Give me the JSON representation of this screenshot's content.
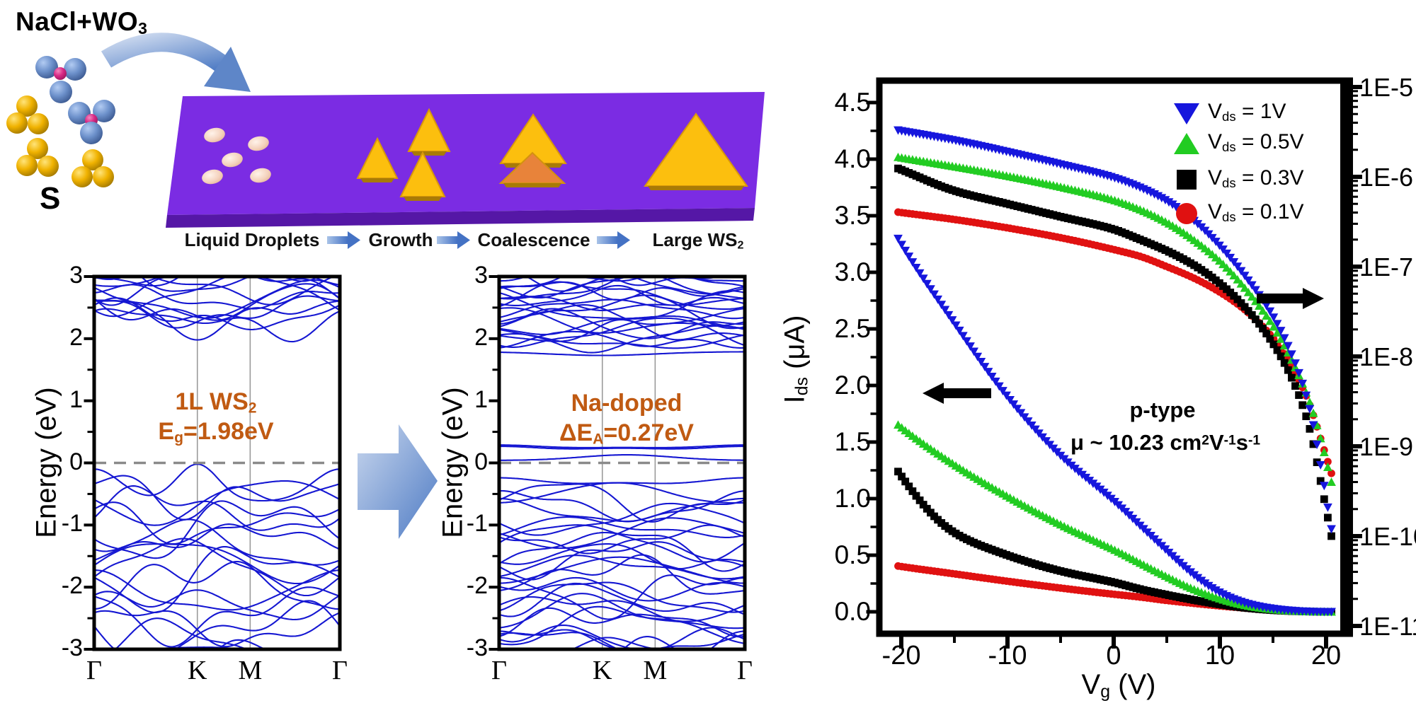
{
  "colors": {
    "series_blue": "#1616dd",
    "series_green": "#22cc22",
    "series_black": "#000000",
    "series_red": "#e01111",
    "band_line": "#1517d2",
    "fermi_dash": "#8a8a8a",
    "kpoint_grid": "#9a9a9a",
    "annotation_orange": "#c05a12",
    "precursor_blue": "#3b66ae",
    "sulfur_yellow": "#e9a603",
    "substrate_purple": "#7b2ce3",
    "substrate_front": "#5517a6",
    "triangle_yellow": "#fcbf0e",
    "triangle_edge": "#a87a06",
    "triangle_orange": "#e8833a",
    "droplet": "#f3cdb9",
    "arrow_light": "#c9d7ee",
    "arrow_dark": "#4e7bc4"
  },
  "schematic": {
    "precursor_label": {
      "pre": "NaCl+WO",
      "sub": "3"
    },
    "sulfur_label": "S",
    "stage1": "Liquid Droplets",
    "stage2": "Growth",
    "stage3": "Coalescence",
    "stage4": {
      "pre": "Large WS",
      "sub": "2"
    }
  },
  "chart_data": [
    {
      "id": "band_structure_pristine",
      "type": "line",
      "title_line1": {
        "pre": "1L WS",
        "sub": "2"
      },
      "title_line2": {
        "pre": "E",
        "sub": "g",
        "post": "=1.98eV"
      },
      "ylabel": "Energy (eV)",
      "ylim": [
        -3,
        3
      ],
      "yticks": [
        3,
        2,
        1,
        0,
        -1,
        -2,
        -3
      ],
      "xticklabels": [
        "Γ",
        "K",
        "M",
        "Γ"
      ],
      "kpoint_fractions": [
        0,
        0.42,
        0.635,
        1
      ],
      "fermi_level_eV": 0,
      "band_gap_eV": 1.98,
      "valence": {
        "n": 20,
        "top": -0.45,
        "bottom": -3.35,
        "amp": 0.42
      },
      "conduction": {
        "n": 13,
        "top": 3.2,
        "bottom": 2.32,
        "amp": 0.3
      },
      "special_bands": [
        {
          "base": 2.62,
          "bumps": [
            [
              0.42,
              0.16,
              -0.64
            ],
            [
              0.8,
              0.12,
              -0.22
            ]
          ]
        },
        {
          "base": -0.62,
          "bumps": [
            [
              0.42,
              0.12,
              0.6
            ],
            [
              0,
              0.15,
              0.52
            ],
            [
              1,
              0.15,
              0.52
            ]
          ]
        }
      ],
      "seed": 7
    },
    {
      "id": "band_structure_na_doped",
      "type": "line",
      "title_line1": {
        "pre": "Na-doped",
        "sub": ""
      },
      "title_line2": {
        "pre": "ΔE",
        "sub": "A",
        "post": "=0.27eV"
      },
      "ylabel": "Energy (eV)",
      "ylim": [
        -3,
        3
      ],
      "yticks": [
        3,
        2,
        1,
        0,
        -1,
        -2,
        -3
      ],
      "xticklabels": [
        "Γ",
        "K",
        "M",
        "Γ"
      ],
      "kpoint_fractions": [
        0,
        0.42,
        0.635,
        1
      ],
      "fermi_level_eV": 0,
      "acceptor_level_eV": 0.27,
      "valence": {
        "n": 30,
        "top": -0.5,
        "bottom": -3.35,
        "amp": 0.28
      },
      "conduction": {
        "n": 24,
        "top": 3.2,
        "bottom": 1.9,
        "amp": 0.22
      },
      "special_bands": [
        {
          "base": 0.24,
          "cos": [
            0.015,
            0.012
          ]
        },
        {
          "base": 0.26,
          "cos": [
            0.02,
            0.008
          ]
        },
        {
          "base": 0.04,
          "bumps": [
            [
              0.52,
              0.26,
              0.09
            ]
          ]
        },
        {
          "base": 1.79,
          "bumps": [
            [
              0.42,
              0.3,
              -0.06
            ]
          ]
        },
        {
          "base": -0.3,
          "cos": [
            0.04,
            0.02
          ]
        }
      ],
      "seed": 13
    },
    {
      "id": "transfer_curves",
      "type": "scatter",
      "xlabel": {
        "pre": "V",
        "sub": "g",
        "post": " (V)"
      },
      "ylabel": {
        "pre": "I",
        "sub": "ds",
        "post": " (μA)"
      },
      "xlim": [
        -22.07,
        21.93
      ],
      "xticks": [
        -20,
        -10,
        0,
        10,
        20
      ],
      "x_minor_step": 5,
      "ylim_left": [
        -0.19,
        4.69
      ],
      "yticks_left": [
        "4.5",
        "4.0",
        "3.5",
        "3.0",
        "2.5",
        "2.0",
        "1.5",
        "1.0",
        "0.5",
        "0.0"
      ],
      "yticks_right": [
        "1E-5",
        "1E-6",
        "1E-7",
        "1E-8",
        "1E-9",
        "1E-10",
        "1E-11"
      ],
      "right_axis_decades": [
        -5,
        -11
      ],
      "vg": [
        -20,
        -15,
        -10,
        -5,
        0,
        2.5,
        5,
        7.5,
        10,
        12.5,
        15,
        17,
        18.5,
        19.5,
        20.5
      ],
      "series": [
        {
          "name": "Vds=1V",
          "marker": "triangle-down",
          "color_key": "series_blue",
          "label": {
            "pre": "V",
            "sub": "ds",
            "post": " = 1V"
          },
          "ids_uA": [
            3.25,
            2.55,
            1.9,
            1.38,
            0.98,
            0.76,
            0.54,
            0.33,
            0.17,
            0.075,
            0.028,
            0.009,
            0.0025,
            0.0006,
            0.00012
          ]
        },
        {
          "name": "Vds=0.5V",
          "marker": "triangle-up",
          "color_key": "series_green",
          "label": {
            "pre": "V",
            "sub": "ds",
            "post": " = 0.5V"
          },
          "ids_uA": [
            1.63,
            1.3,
            1.02,
            0.77,
            0.55,
            0.43,
            0.31,
            0.2,
            0.115,
            0.055,
            0.022,
            0.008,
            0.003,
            0.0012,
            0.0004
          ]
        },
        {
          "name": "Vds=0.3V",
          "marker": "square",
          "color_key": "series_black",
          "label": {
            "pre": "V",
            "sub": "ds",
            "post": " = 0.3V"
          },
          "ids_uA": [
            1.2,
            0.7,
            0.5,
            0.36,
            0.26,
            0.2,
            0.15,
            0.105,
            0.065,
            0.034,
            0.014,
            0.005,
            0.0015,
            0.0004,
            0.0001
          ]
        },
        {
          "name": "Vds=0.1V",
          "marker": "circle",
          "color_key": "series_red",
          "label": {
            "pre": "V",
            "sub": "ds",
            "post": " = 0.1V"
          },
          "ids_uA": [
            0.4,
            0.335,
            0.27,
            0.21,
            0.155,
            0.13,
            0.1,
            0.075,
            0.052,
            0.032,
            0.016,
            0.007,
            0.0028,
            0.0012,
            0.0005
          ]
        }
      ],
      "annotations": {
        "ptype": "p-type",
        "mobility": {
          "pre": "μ ~ 10.23 cm",
          "sup1": "2",
          "mid1": "V",
          "sup2": "-1",
          "mid2": "s",
          "sup3": "-1"
        }
      }
    }
  ]
}
